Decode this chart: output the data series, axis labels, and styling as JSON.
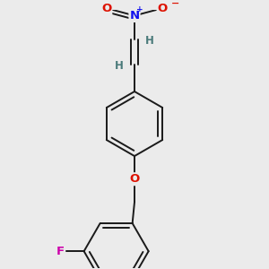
{
  "background_color": "#ebebeb",
  "bond_color": "#1a1a1a",
  "atom_colors": {
    "O": "#dd1100",
    "N": "#1111ee",
    "F": "#cc00aa",
    "H": "#4a7a7a"
  },
  "line_width": 1.4,
  "font_size": 8.5,
  "figsize": [
    3.0,
    3.0
  ],
  "dpi": 100
}
